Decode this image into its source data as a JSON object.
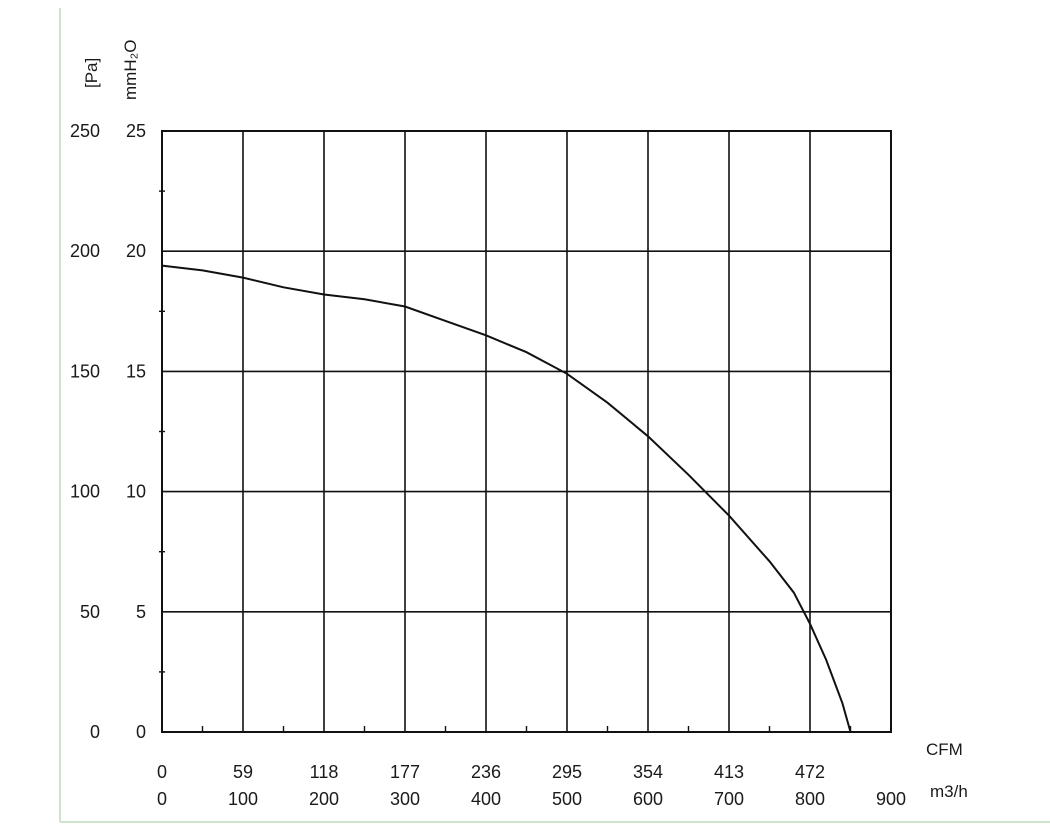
{
  "chart_data": {
    "type": "line",
    "x_unit_top": "CFM",
    "x_unit_bottom": "m3/h",
    "y_unit_left": "[Pa]",
    "y_unit_right": "mmH₂O",
    "xlim": [
      0,
      900
    ],
    "ylim": [
      0,
      250
    ],
    "grid": true,
    "x_ticks_m3h": [
      "0",
      "100",
      "200",
      "300",
      "400",
      "500",
      "600",
      "700",
      "800",
      "900"
    ],
    "x_ticks_cfm": [
      "0",
      "59",
      "118",
      "177",
      "236",
      "295",
      "354",
      "413",
      "472"
    ],
    "y_ticks_pa": [
      "0",
      "50",
      "100",
      "150",
      "200",
      "250"
    ],
    "y_ticks_mmh2o": [
      "0",
      "5",
      "10",
      "15",
      "20",
      "25"
    ],
    "series": [
      {
        "x": [
          0,
          50,
          100,
          150,
          200,
          250,
          300,
          350,
          400,
          450,
          500,
          550,
          600,
          650,
          700,
          750,
          780,
          800,
          820,
          840,
          850
        ],
        "y": [
          194,
          192,
          189,
          185,
          182,
          180,
          177,
          171,
          165,
          158,
          149,
          137,
          123,
          107,
          90,
          71,
          58,
          45,
          30,
          12,
          0
        ]
      }
    ]
  }
}
